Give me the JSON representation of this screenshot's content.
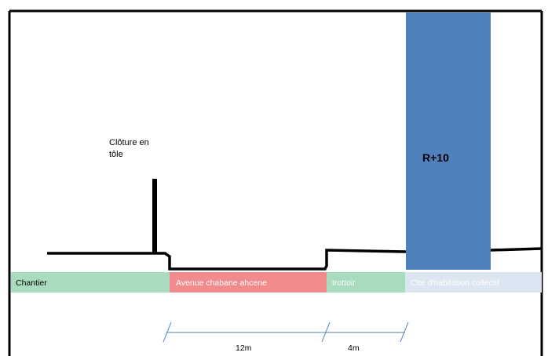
{
  "fence": {
    "label_line1": "Clôture en",
    "label_line2": "tôle"
  },
  "building": {
    "label": "R+10",
    "color": "#4f81bd"
  },
  "zones": [
    {
      "label": "Chantier",
      "color": "#a9dbbf",
      "text_color": "#000000"
    },
    {
      "label": "Avenue chabane ahcene",
      "color": "#f28b8b",
      "text_color": "#ffffff"
    },
    {
      "label": "trottoir",
      "color": "#a9dbbf",
      "text_color": "#ffffff"
    },
    {
      "label": "Cite d'habitation collectif",
      "color": "#dce6f2",
      "text_color": "#ffffff"
    }
  ],
  "dimensions": [
    {
      "label": "12m"
    },
    {
      "label": "4m"
    }
  ],
  "colors": {
    "dimension_line": "#4f81bd",
    "profile_line": "#000000"
  }
}
